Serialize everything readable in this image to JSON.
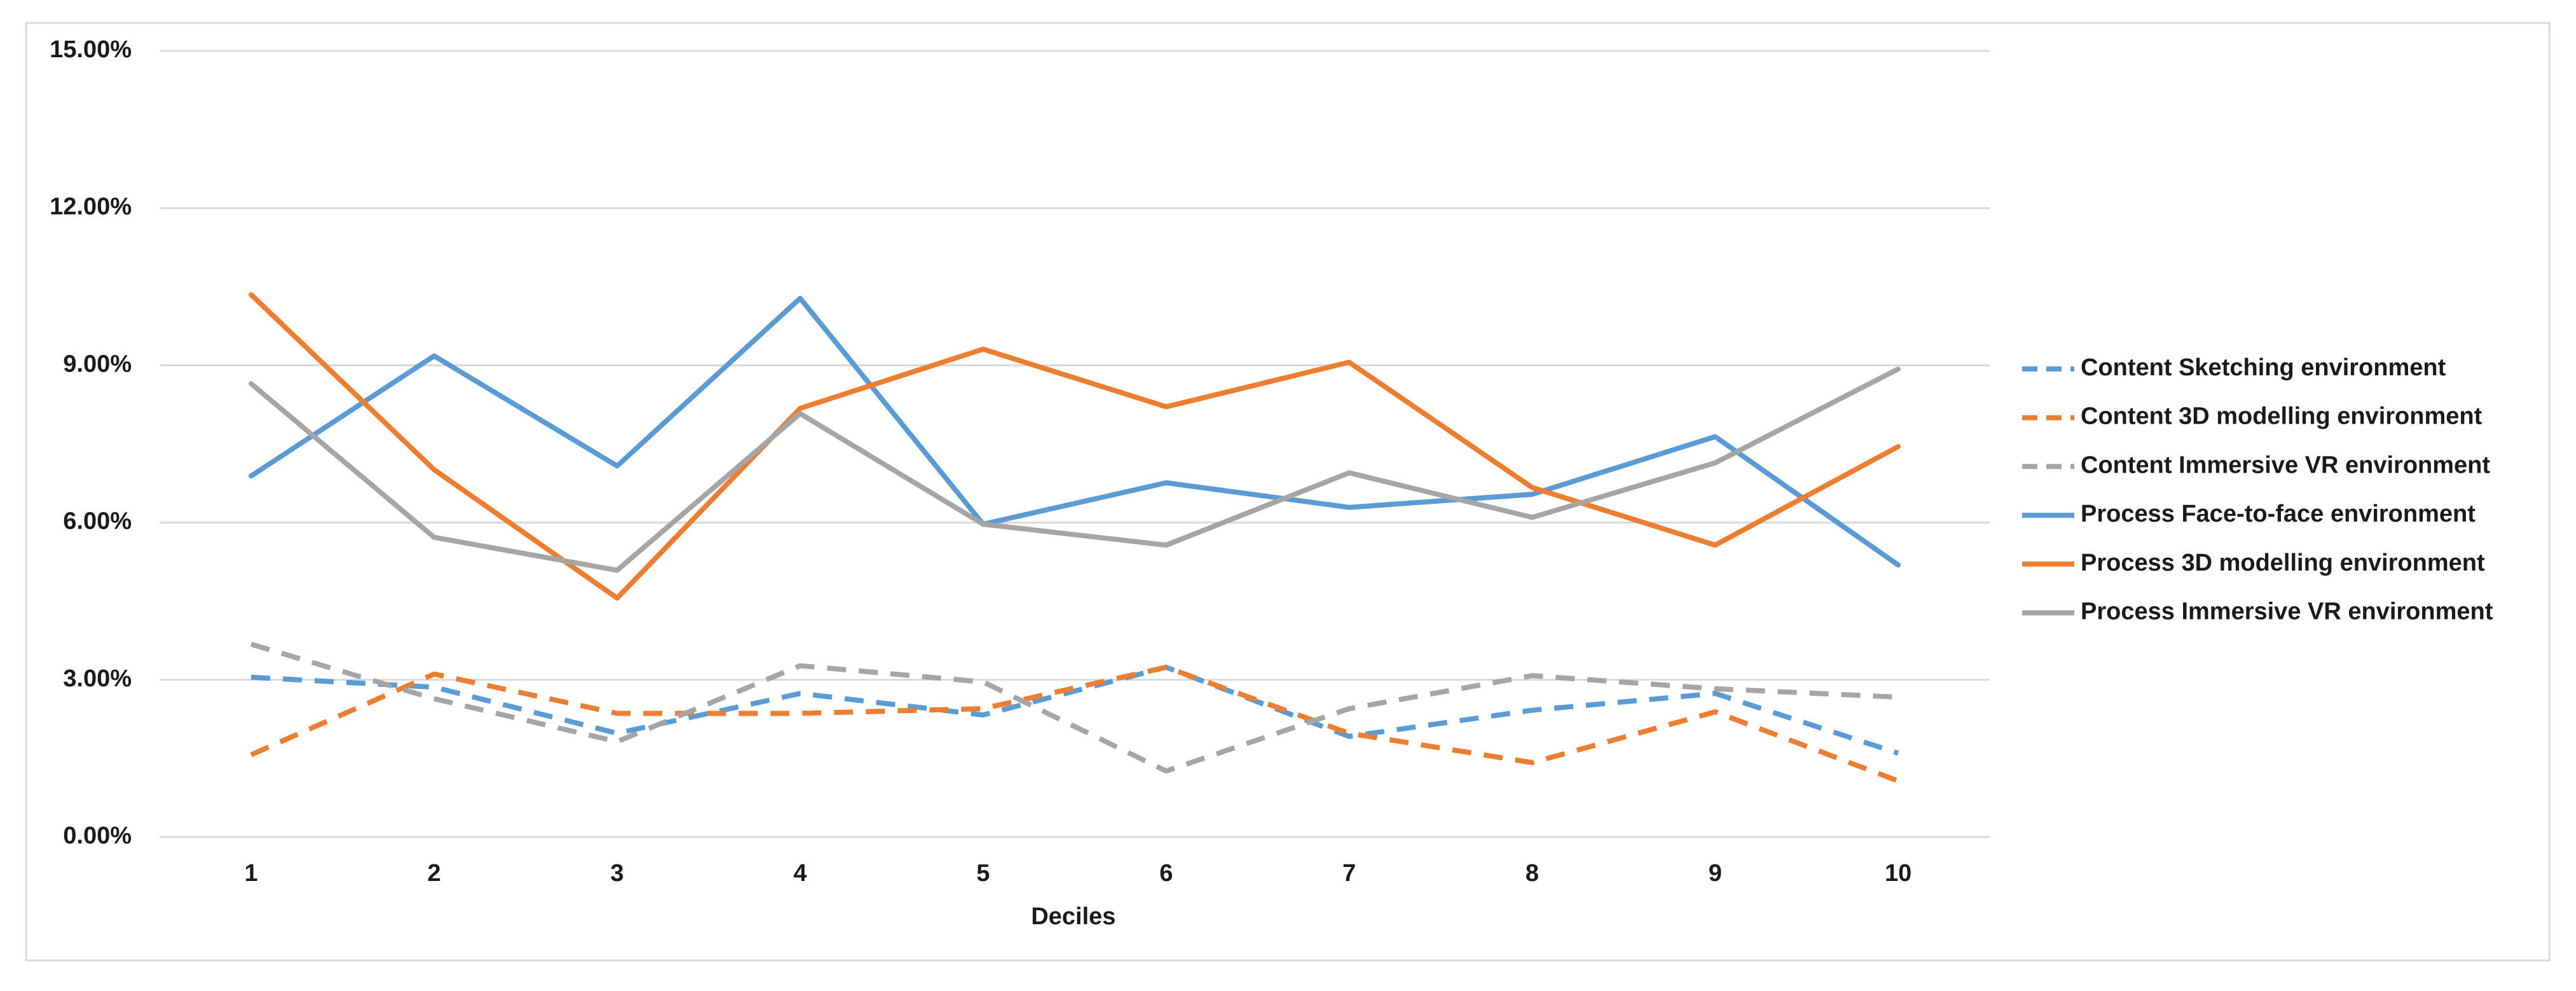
{
  "chart_data": {
    "type": "line",
    "x_label": "Deciles",
    "categories": [
      "1",
      "2",
      "3",
      "4",
      "5",
      "6",
      "7",
      "8",
      "9",
      "10"
    ],
    "ylim": [
      0,
      15
    ],
    "yticks": [
      {
        "value": 0,
        "label": "0.00%"
      },
      {
        "value": 3,
        "label": "3.00%"
      },
      {
        "value": 6,
        "label": "6.00%"
      },
      {
        "value": 9,
        "label": "9.00%"
      },
      {
        "value": 12,
        "label": "12.00%"
      },
      {
        "value": 15,
        "label": "15.00%"
      }
    ],
    "grid": true,
    "legend": "right",
    "series": [
      {
        "name": "Content Sketching environment",
        "color": "#5b9bd5",
        "dashed": true,
        "values": [
          3.05,
          2.86,
          1.98,
          2.74,
          2.33,
          3.24,
          1.92,
          2.42,
          2.74,
          1.6
        ]
      },
      {
        "name": "Content 3D modelling environment",
        "color": "#ed7d31",
        "dashed": true,
        "values": [
          1.57,
          3.11,
          2.36,
          2.36,
          2.45,
          3.24,
          1.98,
          1.42,
          2.39,
          1.07
        ]
      },
      {
        "name": "Content Immersive VR environment",
        "color": "#a5a5a5",
        "dashed": true,
        "values": [
          3.68,
          2.64,
          1.82,
          3.27,
          2.96,
          1.26,
          2.45,
          3.08,
          2.83,
          2.67
        ]
      },
      {
        "name": "Process Face-to-face environment",
        "color": "#5b9bd5",
        "dashed": false,
        "values": [
          6.89,
          9.18,
          7.08,
          10.28,
          5.97,
          6.76,
          6.29,
          6.54,
          7.64,
          5.19
        ]
      },
      {
        "name": "Process 3D modelling environment",
        "color": "#ed7d31",
        "dashed": false,
        "values": [
          10.35,
          7.01,
          4.56,
          8.18,
          9.31,
          8.21,
          9.06,
          6.67,
          5.57,
          7.45
        ]
      },
      {
        "name": "Process Immersive VR environment",
        "color": "#a5a5a5",
        "dashed": false,
        "values": [
          8.65,
          5.72,
          5.09,
          8.08,
          5.97,
          5.57,
          6.95,
          6.1,
          7.14,
          8.93
        ]
      }
    ]
  }
}
